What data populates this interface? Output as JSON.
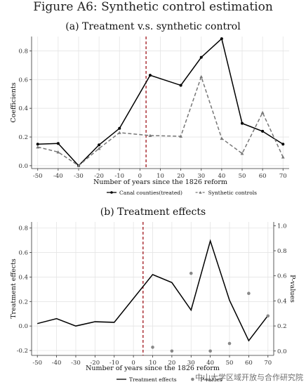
{
  "figure_title": "Figure A6: Synthetic control estimation",
  "watermark": "中山大学区域开放与合作研究院",
  "chart_data": [
    {
      "type": "line",
      "title": "(a) Treatment v.s. synthetic control",
      "xlabel": "Number of years since the 1826 reform",
      "ylabel": "Coefficients",
      "x": [
        -50,
        -40,
        -30,
        -20,
        -10,
        0,
        10,
        20,
        30,
        40,
        50,
        60,
        70
      ],
      "xticks": [
        "-50",
        "-40",
        "-30",
        "-20",
        "-10",
        "0",
        "10",
        "20",
        "30",
        "40",
        "50",
        "60",
        "70"
      ],
      "yticks": [
        "0.0",
        "0.2",
        "0.4",
        "0.6",
        "0.8"
      ],
      "xlim": [
        -53,
        73
      ],
      "ylim": [
        -0.02,
        0.9
      ],
      "reference_line_x": 3,
      "grid": true,
      "legend_position": "bottom",
      "series": [
        {
          "name": "Canal counties(treated)",
          "color": "#000000",
          "dashed": false,
          "x": [
            -50,
            -40,
            -30,
            -20,
            -10,
            5,
            20,
            30,
            40,
            50,
            60,
            70
          ],
          "values": [
            0.15,
            0.155,
            0.0,
            0.145,
            0.26,
            0.63,
            0.56,
            0.755,
            0.885,
            0.295,
            0.24,
            0.15
          ]
        },
        {
          "name": "Synthetic controls",
          "color": "#777777",
          "dashed": true,
          "x": [
            -50,
            -40,
            -30,
            -20,
            -10,
            5,
            20,
            30,
            40,
            50,
            60,
            70
          ],
          "values": [
            0.13,
            0.095,
            0.0,
            0.12,
            0.23,
            0.21,
            0.205,
            0.62,
            0.19,
            0.085,
            0.37,
            0.06
          ]
        }
      ]
    },
    {
      "type": "line",
      "title": "(b) Treatment effects",
      "xlabel": "Number of years since the 1826 reform",
      "ylabel": "Treatment effects",
      "y2label": "P-values",
      "x": [
        -50,
        -40,
        -30,
        -20,
        -10,
        0,
        10,
        20,
        30,
        40,
        50,
        60,
        70
      ],
      "xticks": [
        "-50",
        "-40",
        "-30",
        "-20",
        "-10",
        "0",
        "10",
        "20",
        "30",
        "40",
        "50",
        "60",
        "70"
      ],
      "yticks": [
        "-0.2",
        "0.0",
        "0.2",
        "0.4",
        "0.6",
        "0.8"
      ],
      "y2ticks": [
        "0.0",
        "0.2",
        "0.4",
        "0.6",
        "0.8",
        "1.0"
      ],
      "xlim": [
        -53,
        73
      ],
      "ylim": [
        -0.24,
        0.85
      ],
      "y2lim": [
        -0.035,
        1.03
      ],
      "reference_line_x": 5,
      "grid": true,
      "legend_position": "bottom",
      "series": [
        {
          "name": "Treatment effects",
          "color": "#000000",
          "type": "line",
          "x": [
            -50,
            -40,
            -30,
            -20,
            -10,
            10,
            20,
            30,
            40,
            50,
            60,
            70
          ],
          "values": [
            0.02,
            0.06,
            0.0,
            0.035,
            0.03,
            0.42,
            0.355,
            0.13,
            0.695,
            0.21,
            -0.12,
            0.085
          ]
        },
        {
          "name": "P-values",
          "color": "#888888",
          "type": "scatter",
          "axis": "right",
          "x": [
            10,
            20,
            30,
            40,
            50,
            60,
            70
          ],
          "values": [
            0.03,
            0.0,
            0.62,
            0.0,
            0.06,
            0.46,
            0.28
          ]
        }
      ]
    }
  ]
}
